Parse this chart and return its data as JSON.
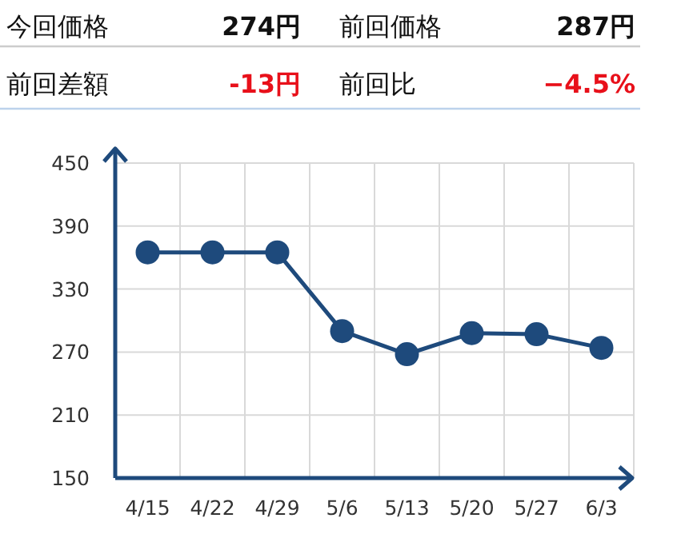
{
  "chart_data": {
    "type": "line",
    "annotations": [
      "今回価格",
      "274円",
      "前回価格",
      "287円",
      "前回差額",
      "-13円",
      "前回比",
      "−4.5%"
    ],
    "categories": [
      "4/15",
      "4/22",
      "4/29",
      "5/6",
      "5/13",
      "5/20",
      "5/27",
      "6/3"
    ],
    "values": [
      365,
      365,
      365,
      290,
      268,
      288,
      287,
      274
    ],
    "color": "#1e4a7c",
    "ylim": [
      150,
      450
    ],
    "yticks": [
      150,
      210,
      270,
      330,
      390,
      450
    ],
    "grid": true,
    "marker": "circle",
    "line_style": "solid"
  }
}
